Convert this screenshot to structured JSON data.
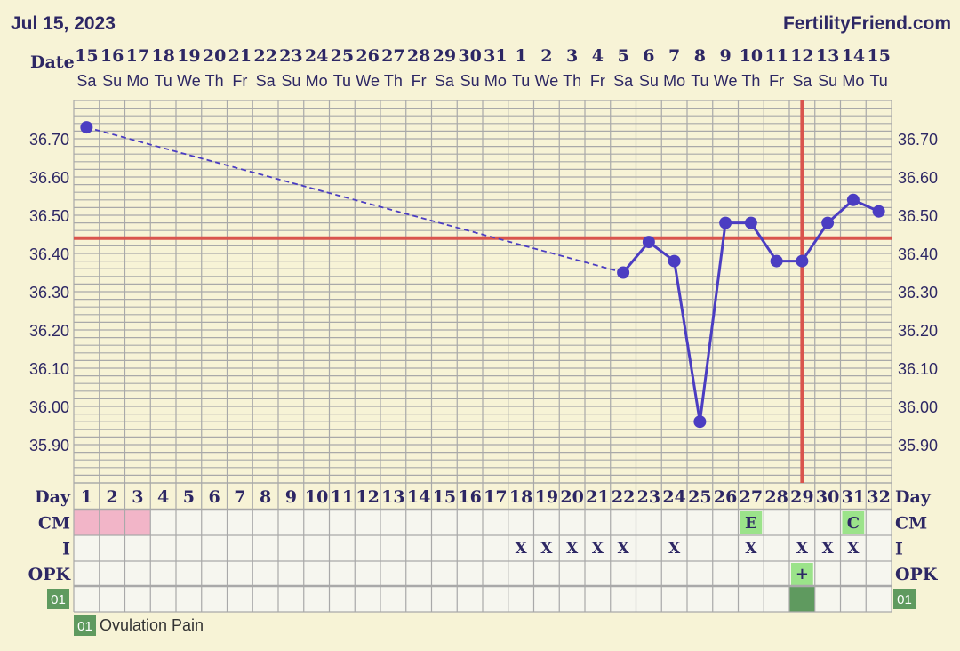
{
  "header": {
    "date_label": "Jul 15, 2023",
    "site": "FertilityFriend.com"
  },
  "row_labels": {
    "date": "Date",
    "day": "Day",
    "cm": "CM",
    "i": "I",
    "opk": "OPK",
    "custom_code": "01"
  },
  "colors": {
    "background": "#f7f3d6",
    "grid": "#a9a9a9",
    "temp_line": "#4b3dc2",
    "coverline": "#d9544d",
    "ovulation_line": "#d9544d",
    "menstruation": "#f2b5c8",
    "fertile_green": "#9be38a",
    "custom_green": "#5f9a5f"
  },
  "legend": {
    "code": "01",
    "label": "Ovulation Pain"
  },
  "chart_data": {
    "type": "line",
    "dates": [
      "15",
      "16",
      "17",
      "18",
      "19",
      "20",
      "21",
      "22",
      "23",
      "24",
      "25",
      "26",
      "27",
      "28",
      "29",
      "30",
      "31",
      "1",
      "2",
      "3",
      "4",
      "5",
      "6",
      "7",
      "8",
      "9",
      "10",
      "11",
      "12",
      "13",
      "14",
      "15"
    ],
    "weekdays": [
      "Sa",
      "Su",
      "Mo",
      "Tu",
      "We",
      "Th",
      "Fr",
      "Sa",
      "Su",
      "Mo",
      "Tu",
      "We",
      "Th",
      "Fr",
      "Sa",
      "Su",
      "Mo",
      "Tu",
      "We",
      "Th",
      "Fr",
      "Sa",
      "Su",
      "Mo",
      "Tu",
      "We",
      "Th",
      "Fr",
      "Sa",
      "Su",
      "Mo",
      "Tu"
    ],
    "cycle_days": [
      1,
      2,
      3,
      4,
      5,
      6,
      7,
      8,
      9,
      10,
      11,
      12,
      13,
      14,
      15,
      16,
      17,
      18,
      19,
      20,
      21,
      22,
      23,
      24,
      25,
      26,
      27,
      28,
      29,
      30,
      31,
      32
    ],
    "temperatures": [
      {
        "day": 1,
        "value": 36.73
      },
      {
        "day": 22,
        "value": 36.35
      },
      {
        "day": 23,
        "value": 36.43
      },
      {
        "day": 24,
        "value": 36.38
      },
      {
        "day": 25,
        "value": 35.96
      },
      {
        "day": 26,
        "value": 36.48
      },
      {
        "day": 27,
        "value": 36.48
      },
      {
        "day": 28,
        "value": 36.38
      },
      {
        "day": 29,
        "value": 36.38
      },
      {
        "day": 30,
        "value": 36.48
      },
      {
        "day": 31,
        "value": 36.54
      },
      {
        "day": 32,
        "value": 36.51
      }
    ],
    "y_ticks": [
      "36.70",
      "36.60",
      "36.50",
      "36.40",
      "36.30",
      "36.20",
      "36.10",
      "36.00",
      "35.90"
    ],
    "ylim": [
      35.8,
      36.8
    ],
    "coverline": 36.44,
    "ovulation_day": 29,
    "menstruation_days": [
      1,
      2,
      3
    ],
    "cm": [
      {
        "day": 27,
        "code": "E"
      },
      {
        "day": 31,
        "code": "C"
      }
    ],
    "intercourse_days": [
      18,
      19,
      20,
      21,
      22,
      24,
      27,
      29,
      30,
      31
    ],
    "intercourse_mark": "X",
    "opk": [
      {
        "day": 29,
        "code": "+"
      }
    ],
    "custom_days": [
      29
    ],
    "grid": true
  }
}
